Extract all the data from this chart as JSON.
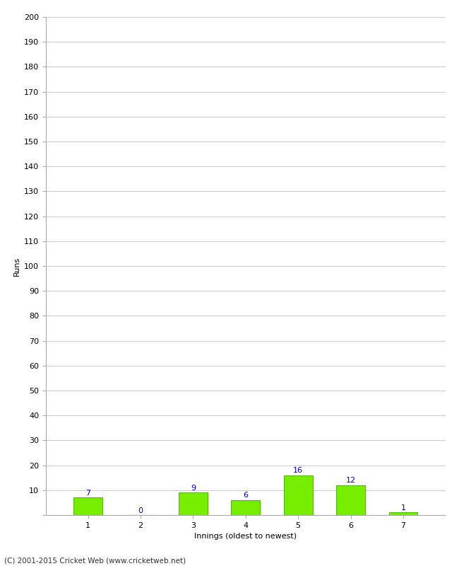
{
  "innings": [
    1,
    2,
    3,
    4,
    5,
    6,
    7
  ],
  "runs": [
    7,
    0,
    9,
    6,
    16,
    12,
    1
  ],
  "bar_color": "#77ee00",
  "bar_edge_color": "#55bb00",
  "label_color": "#0000cc",
  "xlabel": "Innings (oldest to newest)",
  "ylabel": "Runs",
  "ylim": [
    0,
    200
  ],
  "yticks": [
    0,
    10,
    20,
    30,
    40,
    50,
    60,
    70,
    80,
    90,
    100,
    110,
    120,
    130,
    140,
    150,
    160,
    170,
    180,
    190,
    200
  ],
  "footer": "(C) 2001-2015 Cricket Web (www.cricketweb.net)",
  "background_color": "#ffffff",
  "grid_color": "#cccccc",
  "label_fontsize": 8,
  "axis_label_fontsize": 8,
  "footer_fontsize": 7.5,
  "tick_fontsize": 8
}
